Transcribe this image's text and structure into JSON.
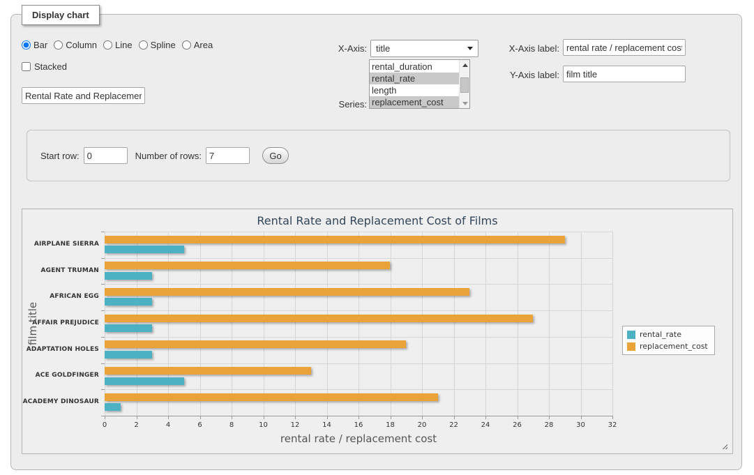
{
  "panel": {
    "legend": "Display chart"
  },
  "controls": {
    "chart_types": [
      {
        "label": "Bar",
        "selected": true
      },
      {
        "label": "Column",
        "selected": false
      },
      {
        "label": "Line",
        "selected": false
      },
      {
        "label": "Spline",
        "selected": false
      },
      {
        "label": "Area",
        "selected": false
      }
    ],
    "stacked": {
      "label": "Stacked",
      "checked": false
    },
    "chart_title_input": {
      "value": "Rental Rate and Replacement Cost of Films"
    },
    "x_axis": {
      "label": "X-Axis:",
      "value": "title"
    },
    "series": {
      "label": "Series:",
      "options": [
        {
          "label": "rental_duration",
          "selected": false
        },
        {
          "label": "rental_rate",
          "selected": true
        },
        {
          "label": "length",
          "selected": false
        },
        {
          "label": "replacement_cost",
          "selected": true
        }
      ]
    },
    "x_axis_label": {
      "label": "X-Axis label:",
      "value": "rental rate / replacement cost"
    },
    "y_axis_label": {
      "label": "Y-Axis label:",
      "value": "film title"
    }
  },
  "row_controls": {
    "start_row_label": "Start row:",
    "start_row_value": "0",
    "num_rows_label": "Number of rows:",
    "num_rows_value": "7",
    "go_label": "Go"
  },
  "chart_data": {
    "type": "bar",
    "title": "Rental Rate and Replacement Cost of Films",
    "categories": [
      "AIRPLANE SIERRA",
      "AGENT TRUMAN",
      "AFRICAN EGG",
      "AFFAIR PREJUDICE",
      "ADAPTATION HOLES",
      "ACE GOLDFINGER",
      "ACADEMY DINOSAUR"
    ],
    "series": [
      {
        "name": "rental_rate",
        "color": "#4db1c4",
        "values": [
          4.99,
          2.99,
          2.99,
          2.99,
          2.99,
          4.99,
          0.99
        ]
      },
      {
        "name": "replacement_cost",
        "color": "#eaa338",
        "values": [
          28.99,
          17.99,
          22.99,
          26.99,
          18.99,
          12.99,
          20.99
        ]
      }
    ],
    "bar_order_in_group": [
      "replacement_cost",
      "rental_rate"
    ],
    "xlabel": "rental rate / replacement cost",
    "ylabel": "film title",
    "xlim": [
      0,
      32
    ],
    "xtick_step": 2,
    "grid": true,
    "legend_position": "right"
  }
}
